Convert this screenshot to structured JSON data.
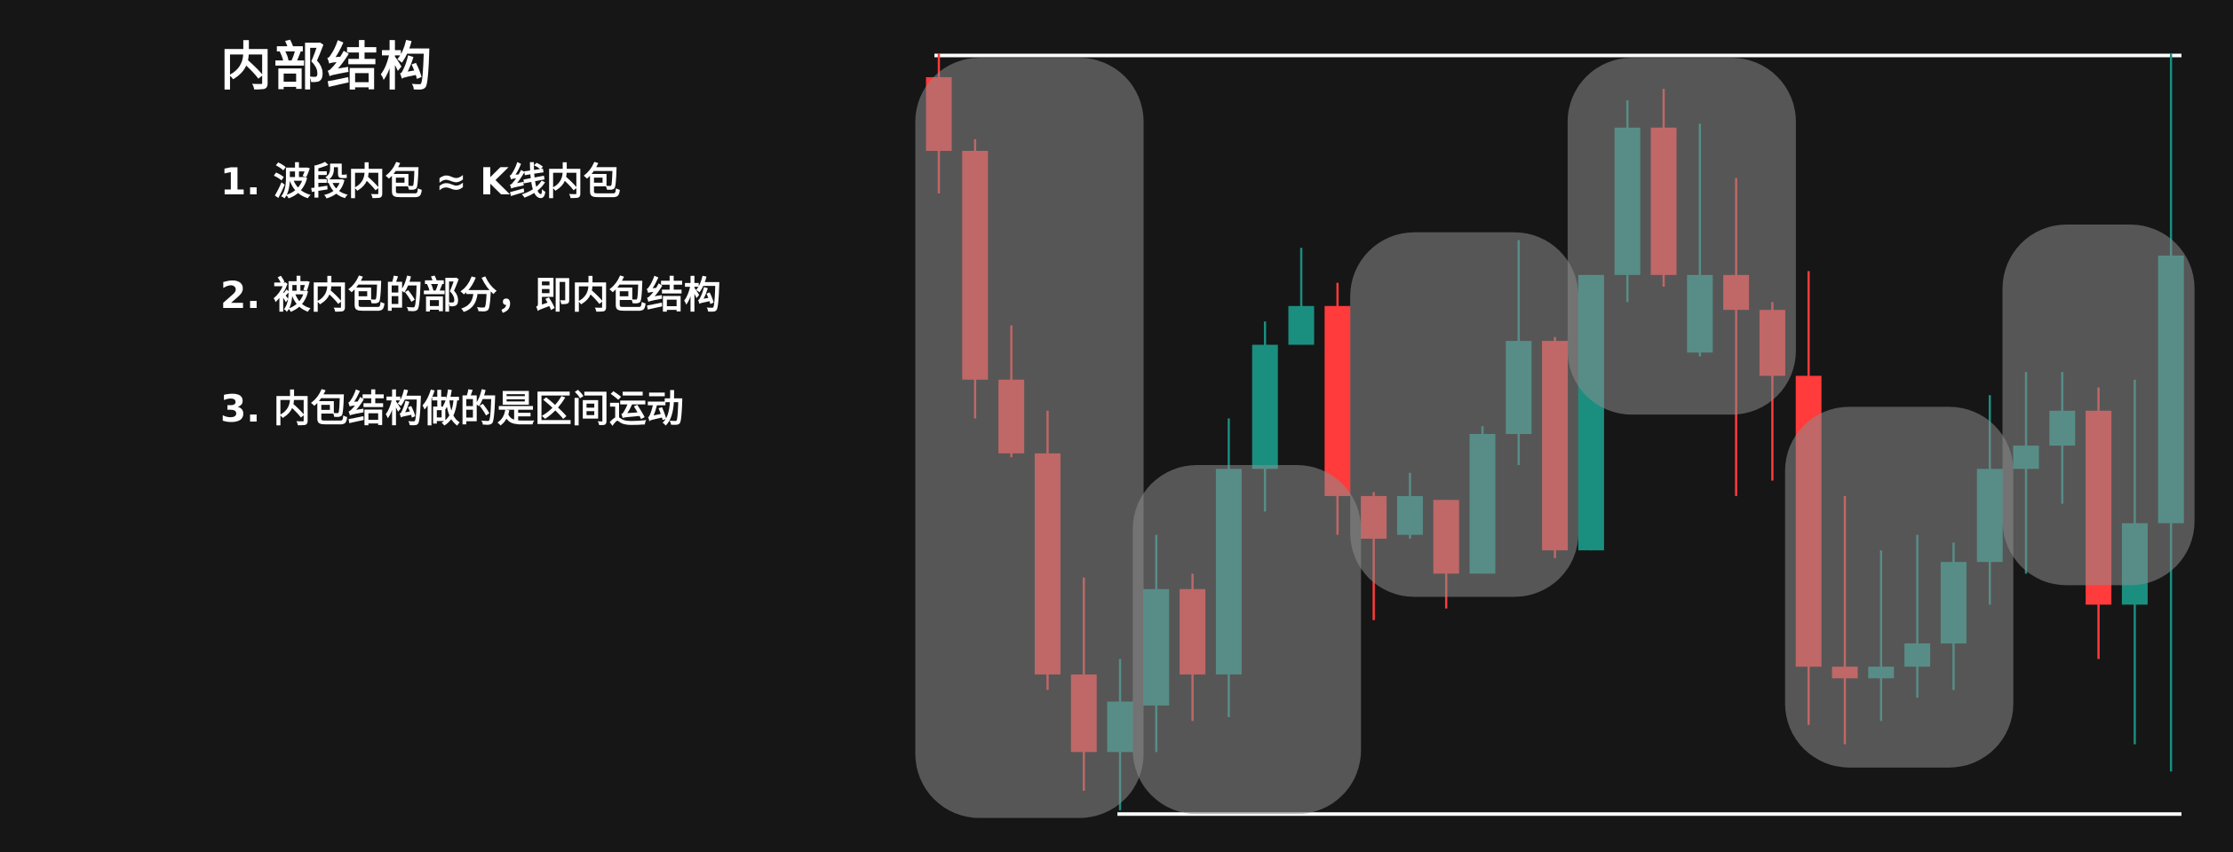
{
  "slide": {
    "title": "内部结构",
    "points": [
      "1. 波段内包 ≈ K线内包",
      "2. 被内包的部分，即内包结构",
      "3. 内包结构做的是区间运动"
    ]
  },
  "colors": {
    "background": "#161616",
    "bull": "#1a8f80",
    "bear": "#ff3b3b",
    "highlight_box": "#8c8c8c",
    "range_line": "#ffffff"
  },
  "chart_data": {
    "type": "candlestick",
    "title": "",
    "xlabel": "",
    "ylabel": "",
    "ylim": [
      0,
      100
    ],
    "grid": false,
    "range_lines": {
      "upper": 98.8,
      "lower": 1.0
    },
    "candles": [
      {
        "open": 96,
        "close": 86.5,
        "high": 99,
        "low": 81
      },
      {
        "open": 86.5,
        "close": 57,
        "high": 88,
        "low": 52
      },
      {
        "open": 57,
        "close": 47.5,
        "high": 64,
        "low": 47
      },
      {
        "open": 47.5,
        "close": 19,
        "high": 53,
        "low": 17
      },
      {
        "open": 19,
        "close": 9,
        "high": 31.5,
        "low": 4
      },
      {
        "open": 9,
        "close": 15.5,
        "high": 21,
        "low": 1.5
      },
      {
        "open": 15,
        "close": 30,
        "high": 37,
        "low": 9
      },
      {
        "open": 30,
        "close": 19,
        "high": 32,
        "low": 13
      },
      {
        "open": 19,
        "close": 45.5,
        "high": 52,
        "low": 13.5
      },
      {
        "open": 45.5,
        "close": 61.5,
        "high": 64.5,
        "low": 40
      },
      {
        "open": 61.5,
        "close": 66.5,
        "high": 74,
        "low": 61.5
      },
      {
        "open": 66.5,
        "close": 42,
        "high": 69.5,
        "low": 37
      },
      {
        "open": 42,
        "close": 36.5,
        "high": 42.5,
        "low": 26
      },
      {
        "open": 37,
        "close": 42,
        "high": 45,
        "low": 36.5
      },
      {
        "open": 41.5,
        "close": 32,
        "high": 41.5,
        "low": 27.5
      },
      {
        "open": 32,
        "close": 50,
        "high": 51,
        "low": 32
      },
      {
        "open": 50,
        "close": 62,
        "high": 75,
        "low": 46
      },
      {
        "open": 62,
        "close": 35,
        "high": 62.5,
        "low": 34
      },
      {
        "open": 35,
        "close": 70.5,
        "high": 70.5,
        "low": 35
      },
      {
        "open": 70.5,
        "close": 89.5,
        "high": 93,
        "low": 67
      },
      {
        "open": 89.5,
        "close": 70.5,
        "high": 94.5,
        "low": 69
      },
      {
        "open": 60.5,
        "close": 70.5,
        "high": 90,
        "low": 60
      },
      {
        "open": 70.5,
        "close": 66,
        "high": 83,
        "low": 42
      },
      {
        "open": 66,
        "close": 57.5,
        "high": 67,
        "low": 44
      },
      {
        "open": 57.5,
        "close": 20,
        "high": 71,
        "low": 12.5
      },
      {
        "open": 20,
        "close": 18.5,
        "high": 42,
        "low": 10
      },
      {
        "open": 18.5,
        "close": 20,
        "high": 35,
        "low": 13
      },
      {
        "open": 20,
        "close": 23,
        "high": 37,
        "low": 16
      },
      {
        "open": 23,
        "close": 33.5,
        "high": 36,
        "low": 17
      },
      {
        "open": 33.5,
        "close": 45.5,
        "high": 55,
        "low": 28
      },
      {
        "open": 45.5,
        "close": 48.5,
        "high": 58,
        "low": 32
      },
      {
        "open": 48.5,
        "close": 53,
        "high": 58,
        "low": 41
      },
      {
        "open": 53,
        "close": 28,
        "high": 56,
        "low": 21
      },
      {
        "open": 28,
        "close": 38.5,
        "high": 57,
        "low": 10
      },
      {
        "open": 38.5,
        "close": 73,
        "high": 99,
        "low": 6.5
      }
    ],
    "zones": [
      {
        "start": 0,
        "end": 5,
        "top": 98.5,
        "bottom": 0.5
      },
      {
        "start": 6,
        "end": 11,
        "top": 46,
        "bottom": 1
      },
      {
        "start": 12,
        "end": 17,
        "top": 76,
        "bottom": 29
      },
      {
        "start": 18,
        "end": 23,
        "top": 98.5,
        "bottom": 52.5
      },
      {
        "start": 24,
        "end": 29,
        "top": 53.5,
        "bottom": 7
      },
      {
        "start": 30,
        "end": 34,
        "top": 77,
        "bottom": 30.5
      }
    ]
  }
}
